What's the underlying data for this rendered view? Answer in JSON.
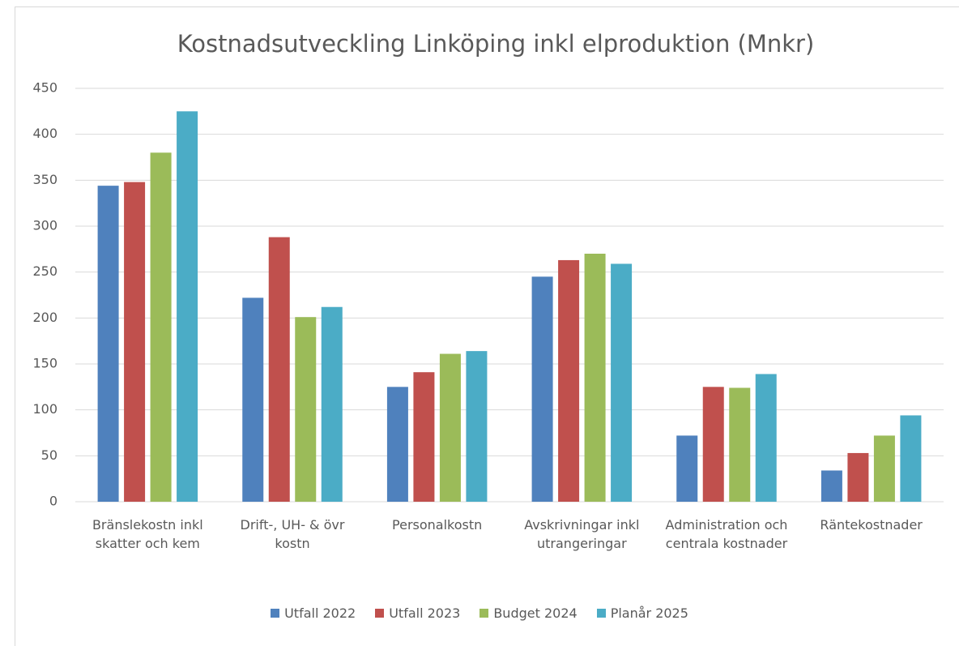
{
  "chart_data": {
    "type": "bar",
    "title": "Kostnadsutveckling Linköping inkl elproduktion (Mnkr)",
    "categories": [
      "Bränslekostn inkl skatter och kem",
      "Drift-, UH- & övr kostn",
      "Personalkostn",
      "Avskrivningar inkl utrangeringar",
      "Administration och centrala kostnader",
      "Räntekostnader"
    ],
    "series": [
      {
        "name": "Utfall 2022",
        "color": "#4f81bd",
        "values": [
          344,
          222,
          125,
          245,
          72,
          34
        ]
      },
      {
        "name": "Utfall 2023",
        "color": "#c0504d",
        "values": [
          348,
          288,
          141,
          263,
          125,
          53
        ]
      },
      {
        "name": "Budget 2024",
        "color": "#9bbb59",
        "values": [
          380,
          201,
          161,
          270,
          124,
          72
        ]
      },
      {
        "name": "Planår 2025",
        "color": "#4bacc6",
        "values": [
          425,
          212,
          164,
          259,
          139,
          94
        ]
      }
    ],
    "ylim": [
      0,
      450
    ],
    "yticks": [
      0,
      50,
      100,
      150,
      200,
      250,
      300,
      350,
      400,
      450
    ],
    "grid": true,
    "legend": "bottom"
  }
}
